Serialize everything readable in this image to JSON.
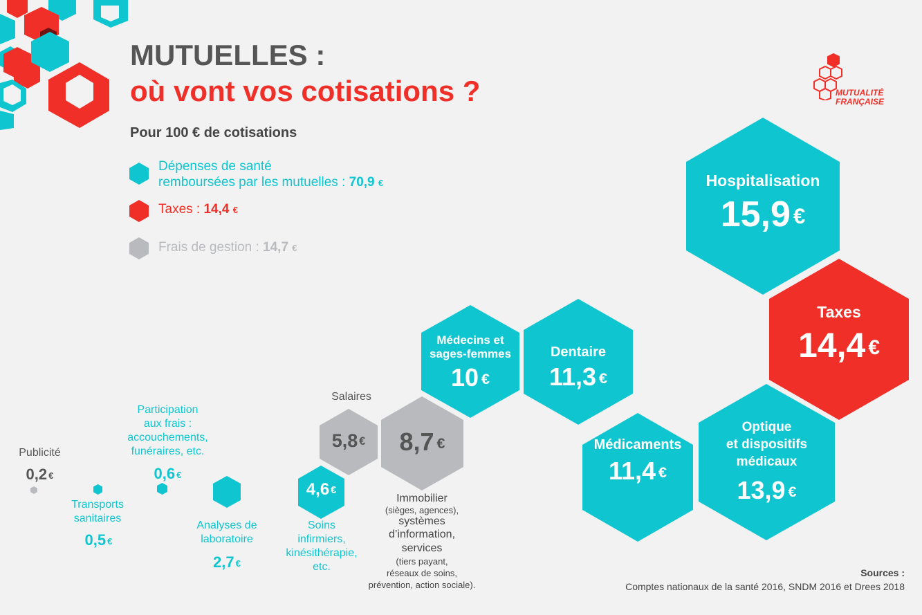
{
  "colors": {
    "cyan": "#0fc6d0",
    "red": "#ef2f28",
    "grey": "#b8babd",
    "dark": "#555555",
    "bg": "#f2f2f2"
  },
  "header": {
    "title_line1": "MUTUELLES :",
    "title_line2": "où vont vos cotisations ?",
    "subtitle": "Pour 100 € de cotisations"
  },
  "logo": {
    "line1": "MUTUALITÉ",
    "line2": "FRANÇAISE"
  },
  "legend": {
    "health_line1": "Dépenses de santé",
    "health_line2": "remboursées par les mutuelles : ",
    "health_value": "70,9",
    "taxes_label": "Taxes : ",
    "taxes_value": "14,4",
    "mgmt_label": "Frais de gestion : ",
    "mgmt_value": "14,7",
    "currency": "€"
  },
  "items": {
    "hospitalisation": {
      "label": "Hospitalisation",
      "value": "15,9"
    },
    "taxes": {
      "label": "Taxes",
      "value": "14,4"
    },
    "optique": {
      "label1": "Optique",
      "label2": "et dispositifs",
      "label3": "médicaux",
      "value": "13,9"
    },
    "medicaments": {
      "label": "Médicaments",
      "value": "11,4"
    },
    "dentaire": {
      "label": "Dentaire",
      "value": "11,3"
    },
    "medecins": {
      "label1": "Médecins et",
      "label2": "sages-femmes",
      "value": "10"
    },
    "immobilier": {
      "value": "8,7",
      "label1": "Immobilier",
      "label2": "(sièges, agences),",
      "label3": "systèmes",
      "label4": "d’information,",
      "label5": "services",
      "label6": "(tiers payant,",
      "label7": "réseaux de soins,",
      "label8": "prévention, action sociale)."
    },
    "salaires": {
      "label": "Salaires",
      "value": "5,8"
    },
    "soins": {
      "value": "4,6",
      "label1": "Soins",
      "label2": "infirmiers,",
      "label3": "kinésithérapie,",
      "label4": "etc."
    },
    "analyses": {
      "label1": "Analyses de",
      "label2": "laboratoire",
      "value": "2,7"
    },
    "participation": {
      "label1": "Participation",
      "label2": "aux frais :",
      "label3": "accouchements,",
      "label4": "funéraires, etc.",
      "value": "0,6"
    },
    "transports": {
      "label1": "Transports",
      "label2": "sanitaires",
      "value": "0,5"
    },
    "publicite": {
      "label": "Publicité",
      "value": "0,2"
    }
  },
  "sources": {
    "title": "Sources :",
    "text": "Comptes nationaux de la santé 2016, SNDM 2016 et Drees 2018"
  }
}
